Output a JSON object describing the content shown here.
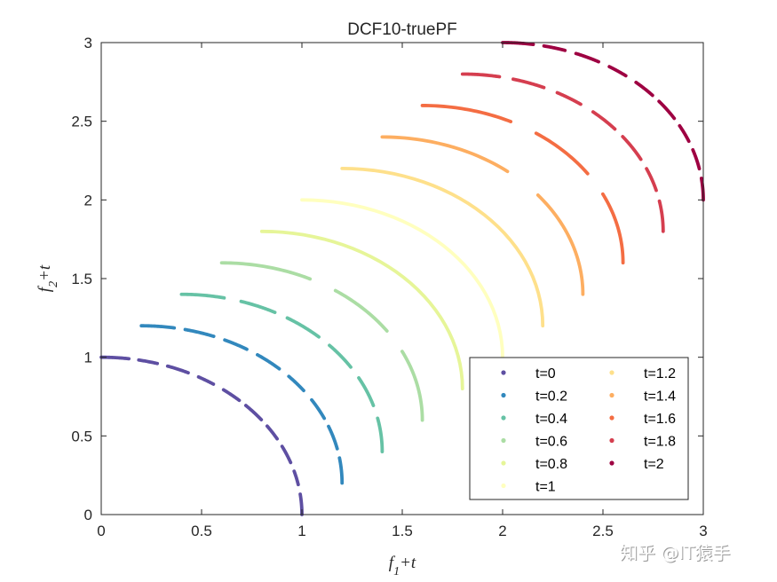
{
  "chart_data": {
    "type": "line",
    "title": "DCF10-truePF",
    "xlabel": {
      "base": "f",
      "sub": "1",
      "suffix": "+t"
    },
    "ylabel": {
      "base": "f",
      "sub": "2",
      "suffix": "+t"
    },
    "xlim": [
      0,
      3
    ],
    "ylim": [
      0,
      3
    ],
    "xticks": [
      0,
      0.5,
      1,
      1.5,
      2,
      2.5,
      3
    ],
    "yticks": [
      0,
      0.5,
      1,
      1.5,
      2,
      2.5,
      3
    ],
    "xtick_labels": [
      "0",
      "0.5",
      "1",
      "1.5",
      "2",
      "2.5",
      "3"
    ],
    "ytick_labels": [
      "0",
      "0.5",
      "1",
      "1.5",
      "2",
      "2.5",
      "3"
    ],
    "grid": false,
    "legend_position": "bottom-right",
    "legend_columns": 2,
    "curve": "quarter circle of radius 1 centered at (t, t), from (t, 1+t) to (1+t, t)",
    "series": [
      {
        "name": "t=0",
        "t": 0,
        "color": "#5e4fa2",
        "gaps": 9
      },
      {
        "name": "t=0.2",
        "t": 0.2,
        "color": "#3288bd",
        "gaps": 7
      },
      {
        "name": "t=0.4",
        "t": 0.4,
        "color": "#66c2a5",
        "gaps": 5
      },
      {
        "name": "t=0.6",
        "t": 0.6,
        "color": "#abdda4",
        "gaps": 2
      },
      {
        "name": "t=0.8",
        "t": 0.8,
        "color": "#e6f598",
        "gaps": 0
      },
      {
        "name": "t=1",
        "t": 1,
        "color": "#ffffbf",
        "gaps": 0
      },
      {
        "name": "t=1.2",
        "t": 1.2,
        "color": "#fee08b",
        "gaps": 0
      },
      {
        "name": "t=1.4",
        "t": 1.4,
        "color": "#fdae61",
        "gaps": 1
      },
      {
        "name": "t=1.6",
        "t": 1.6,
        "color": "#f46d43",
        "gaps": 2
      },
      {
        "name": "t=1.8",
        "t": 1.8,
        "color": "#d53e4f",
        "gaps": 6
      },
      {
        "name": "t=2",
        "t": 2,
        "color": "#9e0142",
        "gaps": 8
      }
    ]
  },
  "watermark": "知乎 @IT猿手"
}
